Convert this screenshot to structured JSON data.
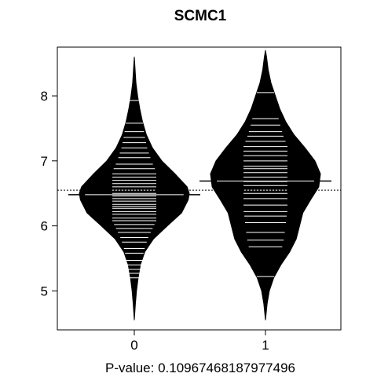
{
  "chart_data": {
    "type": "beanplot",
    "title": "SCMC1",
    "xlabel": "P-value: 0.10967468187977496",
    "ylabel": "",
    "categories": [
      "0",
      "1"
    ],
    "yticks": [
      5,
      6,
      7,
      8
    ],
    "ylim": [
      4.4,
      8.75
    ],
    "overall_mean": 6.55,
    "grid": false,
    "beans": [
      {
        "name": "0",
        "mean": 6.48,
        "min": 4.55,
        "max": 8.6,
        "density": [
          [
            4.55,
            0.0
          ],
          [
            4.8,
            0.02
          ],
          [
            5.0,
            0.04
          ],
          [
            5.2,
            0.07
          ],
          [
            5.4,
            0.11
          ],
          [
            5.6,
            0.19
          ],
          [
            5.8,
            0.35
          ],
          [
            6.0,
            0.6
          ],
          [
            6.2,
            0.86
          ],
          [
            6.4,
            0.98
          ],
          [
            6.5,
            1.0
          ],
          [
            6.6,
            0.96
          ],
          [
            6.8,
            0.74
          ],
          [
            7.0,
            0.5
          ],
          [
            7.2,
            0.33
          ],
          [
            7.4,
            0.22
          ],
          [
            7.6,
            0.15
          ],
          [
            7.8,
            0.1
          ],
          [
            8.0,
            0.06
          ],
          [
            8.2,
            0.03
          ],
          [
            8.4,
            0.015
          ],
          [
            8.6,
            0.0
          ]
        ],
        "observations": [
          5.2,
          5.27,
          5.33,
          5.4,
          5.47,
          5.58,
          5.65,
          5.75,
          5.82,
          5.9,
          5.96,
          6.02,
          6.08,
          6.12,
          6.18,
          6.22,
          6.27,
          6.3,
          6.33,
          6.38,
          6.42,
          6.46,
          6.5,
          6.55,
          6.6,
          6.65,
          6.7,
          6.75,
          6.8,
          6.88,
          6.95,
          7.05,
          7.12,
          7.2,
          7.28,
          7.36,
          7.45,
          7.58,
          7.93
        ]
      },
      {
        "name": "1",
        "mean": 6.69,
        "min": 4.55,
        "max": 8.7,
        "density": [
          [
            4.55,
            0.0
          ],
          [
            4.8,
            0.03
          ],
          [
            5.0,
            0.07
          ],
          [
            5.2,
            0.15
          ],
          [
            5.4,
            0.28
          ],
          [
            5.6,
            0.44
          ],
          [
            5.8,
            0.56
          ],
          [
            6.0,
            0.62
          ],
          [
            6.2,
            0.68
          ],
          [
            6.4,
            0.82
          ],
          [
            6.6,
            0.97
          ],
          [
            6.8,
            1.0
          ],
          [
            7.0,
            0.9
          ],
          [
            7.2,
            0.72
          ],
          [
            7.4,
            0.52
          ],
          [
            7.6,
            0.37
          ],
          [
            7.8,
            0.26
          ],
          [
            8.0,
            0.18
          ],
          [
            8.2,
            0.1
          ],
          [
            8.4,
            0.05
          ],
          [
            8.6,
            0.02
          ],
          [
            8.7,
            0.0
          ]
        ],
        "observations": [
          5.22,
          5.68,
          5.78,
          5.9,
          6.05,
          6.15,
          6.22,
          6.32,
          6.42,
          6.5,
          6.55,
          6.62,
          6.68,
          6.75,
          6.82,
          6.88,
          6.92,
          7.0,
          7.08,
          7.15,
          7.22,
          7.3,
          7.38,
          7.45,
          7.55,
          7.65,
          8.05
        ]
      }
    ]
  }
}
